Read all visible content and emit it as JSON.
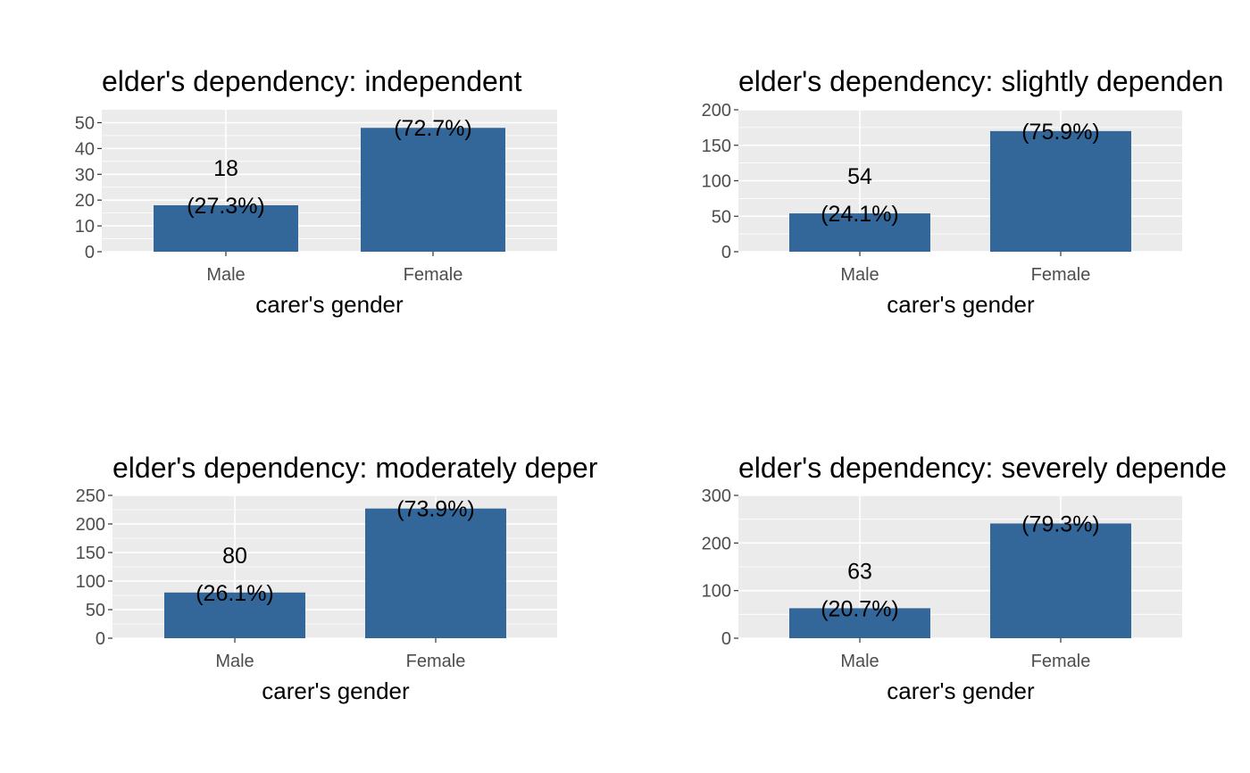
{
  "figure": {
    "bar_color": "#336699",
    "panel_bg": "#EBEBEB",
    "grid_color": "#FFFFFF"
  },
  "chart_data": [
    {
      "type": "bar",
      "title": "elder's dependency: independent",
      "xlabel": "carer's gender",
      "ylabel": "",
      "categories": [
        "Male",
        "Female"
      ],
      "values": [
        18,
        48
      ],
      "ylim": [
        0,
        55
      ],
      "yticks": [
        0,
        10,
        20,
        30,
        40,
        50
      ],
      "ytick_labels": [
        "0",
        "10",
        "20",
        "30",
        "40",
        "50"
      ],
      "count_labels": [
        "18",
        ""
      ],
      "pct_labels": [
        "(27.3%)",
        "(72.7%)"
      ],
      "grid": true
    },
    {
      "type": "bar",
      "title": "elder's dependency: slightly dependen",
      "xlabel": "carer's gender",
      "ylabel": "",
      "categories": [
        "Male",
        "Female"
      ],
      "values": [
        54,
        170
      ],
      "ylim": [
        0,
        200
      ],
      "yticks": [
        0,
        50,
        100,
        150,
        200
      ],
      "ytick_labels": [
        "0",
        "50",
        "100",
        "150",
        "200"
      ],
      "count_labels": [
        "54",
        ""
      ],
      "pct_labels": [
        "(24.1%)",
        "(75.9%)"
      ],
      "grid": true
    },
    {
      "type": "bar",
      "title": "elder's dependency: moderately deper",
      "xlabel": "carer's gender",
      "ylabel": "",
      "categories": [
        "Male",
        "Female"
      ],
      "values": [
        80,
        227
      ],
      "ylim": [
        0,
        250
      ],
      "yticks": [
        0,
        50,
        100,
        150,
        200,
        250
      ],
      "ytick_labels": [
        "0",
        "50",
        "100",
        "150",
        "200",
        "250"
      ],
      "count_labels": [
        "80",
        ""
      ],
      "pct_labels": [
        "(26.1%)",
        "(73.9%)"
      ],
      "grid": true
    },
    {
      "type": "bar",
      "title": "elder's dependency: severely depende",
      "xlabel": "carer's gender",
      "ylabel": "",
      "categories": [
        "Male",
        "Female"
      ],
      "values": [
        63,
        241
      ],
      "ylim": [
        0,
        300
      ],
      "yticks": [
        0,
        100,
        200,
        300
      ],
      "ytick_labels": [
        "0",
        "100",
        "200",
        "300"
      ],
      "count_labels": [
        "63",
        ""
      ],
      "pct_labels": [
        "(20.7%)",
        "(79.3%)"
      ],
      "grid": true
    }
  ]
}
